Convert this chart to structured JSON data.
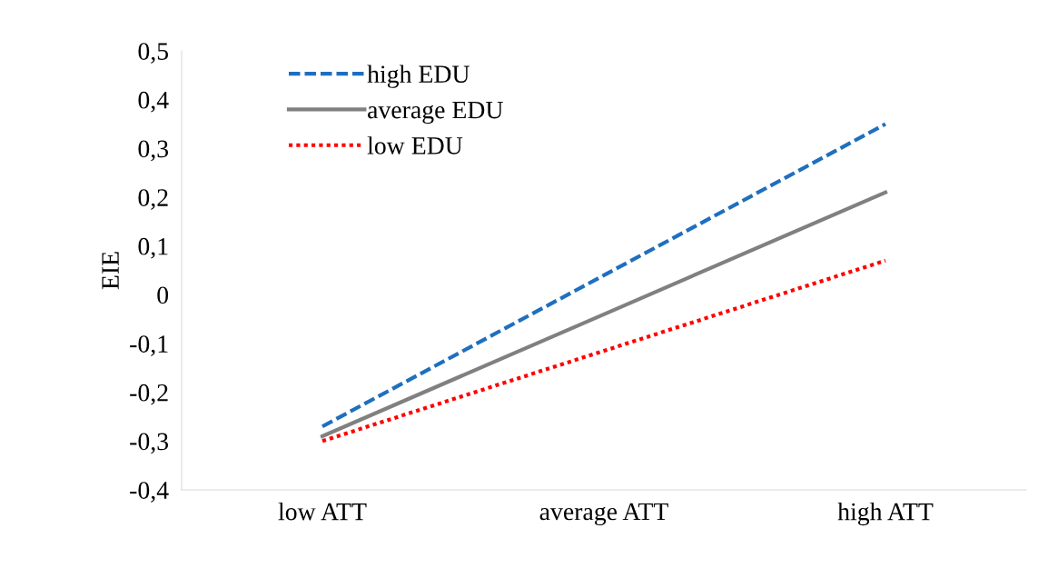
{
  "chart_data": {
    "type": "line",
    "ylabel": "EIE",
    "categories": [
      "low ATT",
      "average ATT",
      "high ATT"
    ],
    "series": [
      {
        "name": "high EDU",
        "color": "#1f6fbf",
        "line_style": "dashed",
        "values": [
          -0.27,
          0.04,
          0.35
        ]
      },
      {
        "name": "average EDU",
        "color": "#808080",
        "line_style": "solid",
        "values": [
          -0.29,
          -0.04,
          0.21
        ]
      },
      {
        "name": "low EDU",
        "color": "#ff0000",
        "line_style": "dotted",
        "values": [
          -0.3,
          -0.115,
          0.07
        ]
      }
    ],
    "ylim": [
      -0.4,
      0.5
    ],
    "yticks": [
      {
        "value": -0.4,
        "label": "-0,4"
      },
      {
        "value": -0.3,
        "label": "-0,3"
      },
      {
        "value": -0.2,
        "label": "-0,2"
      },
      {
        "value": -0.1,
        "label": "-0,1"
      },
      {
        "value": 0,
        "label": "0"
      },
      {
        "value": 0.1,
        "label": "0,1"
      },
      {
        "value": 0.2,
        "label": "0,2"
      },
      {
        "value": 0.3,
        "label": "0,3"
      },
      {
        "value": 0.4,
        "label": "0,4"
      },
      {
        "value": 0.5,
        "label": "0,5"
      }
    ],
    "grid": false,
    "legend": "top left",
    "marker": "none"
  }
}
